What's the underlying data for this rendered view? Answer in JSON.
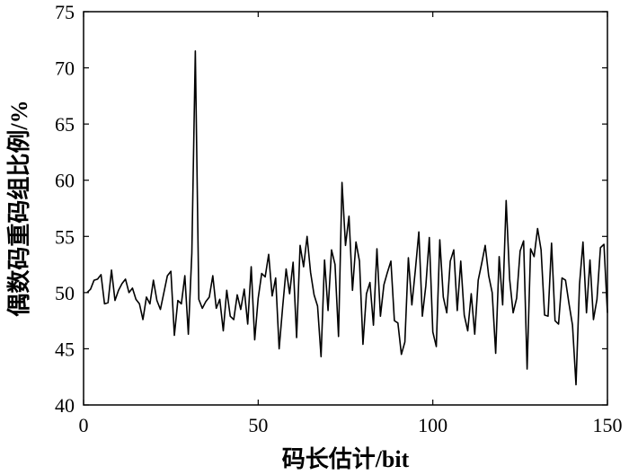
{
  "chart_data": {
    "type": "line",
    "title": "",
    "xlabel": "码长估计/bit",
    "ylabel": "偶数码重码组比例/%",
    "xlim": [
      0,
      150
    ],
    "ylim": [
      40,
      75
    ],
    "xticks": [
      0,
      50,
      100,
      150
    ],
    "yticks": [
      40,
      45,
      50,
      55,
      60,
      65,
      70,
      75
    ],
    "grid": false,
    "series": [
      {
        "x": [
          1,
          2,
          3,
          4,
          5,
          6,
          7,
          8,
          9,
          10,
          11,
          12,
          13,
          14,
          15,
          16,
          17,
          18,
          19,
          20,
          21,
          22,
          23,
          24,
          25,
          26,
          27,
          28,
          29,
          30,
          31,
          32,
          33,
          34,
          35,
          36,
          37,
          38,
          39,
          40,
          41,
          42,
          43,
          44,
          45,
          46,
          47,
          48,
          49,
          50,
          51,
          52,
          53,
          54,
          55,
          56,
          57,
          58,
          59,
          60,
          61,
          62,
          63,
          64,
          65,
          66,
          67,
          68,
          69,
          70,
          71,
          72,
          73,
          74,
          75,
          76,
          77,
          78,
          79,
          80,
          81,
          82,
          83,
          84,
          85,
          86,
          87,
          88,
          89,
          90,
          91,
          92,
          93,
          94,
          95,
          96,
          97,
          98,
          99,
          100,
          101,
          102,
          103,
          104,
          105,
          106,
          107,
          108,
          109,
          110,
          111,
          112,
          113,
          114,
          115,
          116,
          117,
          118,
          119,
          120,
          121,
          122,
          123,
          124,
          125,
          126,
          127,
          128,
          129,
          130,
          131,
          132,
          133,
          134,
          135,
          136,
          137,
          138,
          139,
          140,
          141,
          142,
          143,
          144,
          145,
          146,
          147,
          148,
          149,
          150
        ],
        "y": [
          50.0,
          50.3,
          51.1,
          51.2,
          51.6,
          49.0,
          49.1,
          52.0,
          49.3,
          50.2,
          50.8,
          51.2,
          50.0,
          50.4,
          49.4,
          49.0,
          47.6,
          49.6,
          49.0,
          51.1,
          49.3,
          48.5,
          50.0,
          51.5,
          51.9,
          46.2,
          49.3,
          49.0,
          51.5,
          46.3,
          53.5,
          71.5,
          49.4,
          48.6,
          49.2,
          49.6,
          51.5,
          48.6,
          49.4,
          46.6,
          50.2,
          47.9,
          47.6,
          49.8,
          48.5,
          50.3,
          47.2,
          52.3,
          45.8,
          49.5,
          51.7,
          51.4,
          53.4,
          49.7,
          51.3,
          45.0,
          48.7,
          52.1,
          49.9,
          52.7,
          46.0,
          54.2,
          52.3,
          55.0,
          51.8,
          49.8,
          48.8,
          44.3,
          52.9,
          48.4,
          53.8,
          52.5,
          46.1,
          59.8,
          54.2,
          56.8,
          50.2,
          54.5,
          52.8,
          45.4,
          49.9,
          50.9,
          47.1,
          53.9,
          47.9,
          50.7,
          51.8,
          52.8,
          47.5,
          47.3,
          44.5,
          45.6,
          53.1,
          48.9,
          52.0,
          55.4,
          47.9,
          50.6,
          54.9,
          46.5,
          45.2,
          54.7,
          49.6,
          48.2,
          52.8,
          53.8,
          48.4,
          52.8,
          48.0,
          46.6,
          49.9,
          46.3,
          51.1,
          52.6,
          54.2,
          51.5,
          50.0,
          44.6,
          53.2,
          48.9,
          58.2,
          51.2,
          48.2,
          49.5,
          53.7,
          54.6,
          43.2,
          53.9,
          53.2,
          55.7,
          53.8,
          48.0,
          47.9,
          54.4,
          47.5,
          47.2,
          51.3,
          51.1,
          49.0,
          47.1,
          41.8,
          50.7,
          54.5,
          48.2,
          52.9,
          47.6,
          49.4,
          54.0,
          54.3,
          48.2
        ]
      }
    ]
  }
}
